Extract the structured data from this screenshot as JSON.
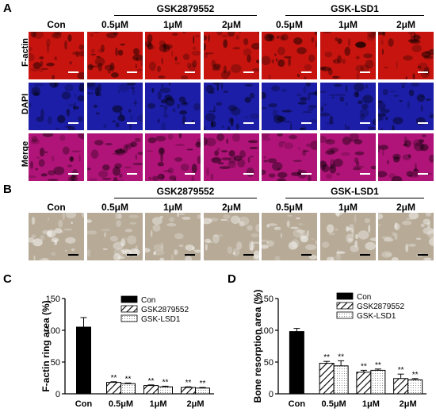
{
  "panels": {
    "A": "A",
    "B": "B",
    "C": "C",
    "D": "D"
  },
  "columns": [
    "Con",
    "0.5μM",
    "1μM",
    "2μM",
    "0.5μM",
    "1μM",
    "2μM"
  ],
  "groups": [
    "GSK2879552",
    "GSK-LSD1"
  ],
  "rows_A": [
    "F-actin",
    "DAPI",
    "Merge"
  ],
  "colors": {
    "factin": "#c8140f",
    "dapi": "#1c1ea8",
    "merge": "#b01478",
    "bone": "#b7ab98"
  },
  "chart_data": [
    {
      "type": "bar",
      "panel": "C",
      "ylabel": "F-actin ring area (%)",
      "ylim": [
        0,
        150
      ],
      "yticks": [
        0,
        50,
        100,
        150
      ],
      "categories": [
        "Con",
        "0.5μM",
        "1μM",
        "2μM"
      ],
      "series": [
        {
          "name": "Con",
          "values": [
            105,
            null,
            null,
            null
          ],
          "errors": [
            15,
            null,
            null,
            null
          ],
          "sig": [
            "",
            "",
            "",
            ""
          ]
        },
        {
          "name": "GSK2879552",
          "values": [
            null,
            18,
            13,
            10
          ],
          "errors": [
            null,
            1,
            1,
            1
          ],
          "sig": [
            "",
            "**",
            "**",
            "**"
          ]
        },
        {
          "name": "GSK-LSD1",
          "values": [
            null,
            16,
            11,
            9
          ],
          "errors": [
            null,
            1,
            1,
            1
          ],
          "sig": [
            "",
            "**",
            "**",
            "**"
          ]
        }
      ]
    },
    {
      "type": "bar",
      "panel": "D",
      "ylabel": "Bone resorption area (%)",
      "ylim": [
        0,
        150
      ],
      "yticks": [
        0,
        50,
        100,
        150
      ],
      "categories": [
        "Con",
        "0.5μM",
        "1μM",
        "2μM"
      ],
      "series": [
        {
          "name": "Con",
          "values": [
            98,
            null,
            null,
            null
          ],
          "errors": [
            5,
            null,
            null,
            null
          ],
          "sig": [
            "",
            "",
            "",
            ""
          ]
        },
        {
          "name": "GSK2879552",
          "values": [
            null,
            48,
            34,
            24
          ],
          "errors": [
            null,
            3,
            3,
            7
          ],
          "sig": [
            "",
            "**",
            "**",
            "**"
          ]
        },
        {
          "name": "GSK-LSD1",
          "values": [
            null,
            44,
            37,
            22
          ],
          "errors": [
            null,
            8,
            2,
            2
          ],
          "sig": [
            "",
            "**",
            "**",
            "**"
          ]
        }
      ]
    }
  ]
}
